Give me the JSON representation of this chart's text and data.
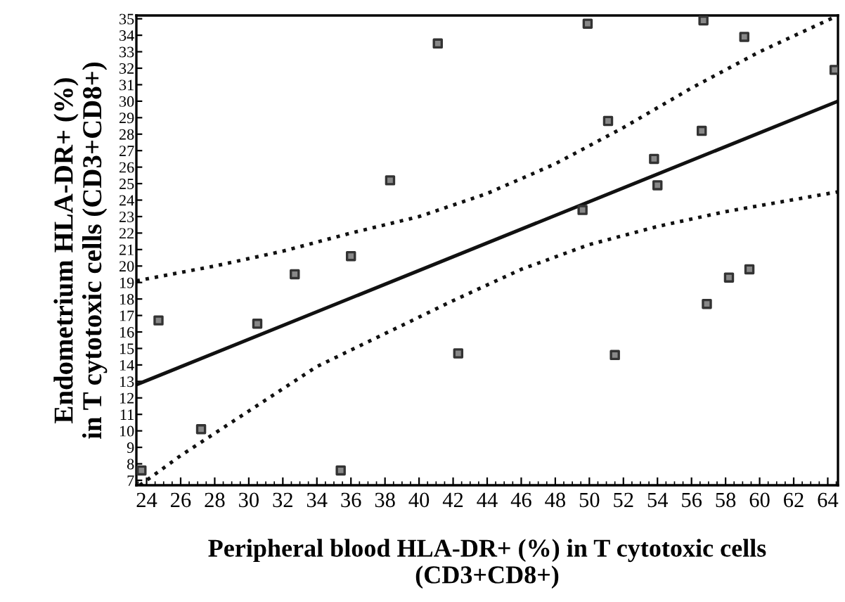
{
  "chart_data": {
    "type": "scatter",
    "xlabel": "Peripheral blood HLA-DR+ (%) in T cytotoxic cells\n(CD3+CD8+)",
    "ylabel": "Endometrium HLA-DR+ (%)\nin T cytotoxic cells (CD3+CD8+)",
    "xlim": [
      23.4,
      64.6
    ],
    "ylim": [
      6.7,
      35.2
    ],
    "xticks": [
      24,
      26,
      28,
      30,
      32,
      34,
      36,
      38,
      40,
      42,
      44,
      46,
      48,
      50,
      52,
      54,
      56,
      58,
      60,
      62,
      64
    ],
    "yticks": [
      7,
      8,
      9,
      10,
      11,
      12,
      13,
      14,
      15,
      16,
      17,
      18,
      19,
      20,
      21,
      22,
      23,
      24,
      25,
      26,
      27,
      28,
      29,
      30,
      31,
      32,
      33,
      34,
      35
    ],
    "grid": false,
    "legend": false,
    "series": [
      {
        "marker": "square",
        "color": "#333333",
        "x": [
          23.7,
          24.7,
          27.2,
          30.5,
          35.4,
          32.7,
          36.0,
          38.3,
          41.1,
          49.9,
          56.7,
          59.1,
          64.4,
          51.1,
          56.6,
          53.8,
          54.0,
          49.6,
          59.4,
          58.2,
          56.9,
          42.3,
          51.5
        ],
        "values": [
          7.6,
          16.7,
          10.1,
          16.5,
          7.6,
          19.5,
          20.6,
          25.2,
          33.5,
          34.7,
          34.9,
          33.9,
          31.9,
          28.8,
          28.2,
          26.5,
          24.9,
          23.4,
          19.8,
          19.3,
          17.7,
          14.7,
          14.6
        ]
      },
      {
        "type": "line",
        "color": "#111111",
        "line_style": "solid",
        "marker": "none",
        "x": [
          23.4,
          64.6
        ],
        "values": [
          12.8,
          30.0
        ]
      },
      {
        "type": "line",
        "color": "#111111",
        "line_style": "dotted",
        "marker": "none",
        "x": [
          23.4,
          28,
          32,
          36,
          40,
          44,
          48,
          52,
          56,
          60,
          64.6
        ],
        "values": [
          19.1,
          20.0,
          20.9,
          22.0,
          23.0,
          24.4,
          26.2,
          28.4,
          30.8,
          33.0,
          35.2
        ]
      },
      {
        "type": "line",
        "color": "#111111",
        "line_style": "dotted",
        "marker": "none",
        "x": [
          23.6,
          26,
          30,
          34,
          38,
          42,
          46,
          50,
          54,
          58,
          64.6
        ],
        "values": [
          6.7,
          8.5,
          11.2,
          13.9,
          15.9,
          17.9,
          19.8,
          21.3,
          22.4,
          23.3,
          24.5
        ]
      }
    ]
  }
}
